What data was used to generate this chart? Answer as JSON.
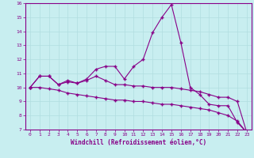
{
  "background_color": "#c8eef0",
  "line_color": "#880088",
  "xlabel": "Windchill (Refroidissement éolien,°C)",
  "xlim": [
    -0.5,
    23.5
  ],
  "ylim": [
    7,
    16
  ],
  "yticks": [
    7,
    8,
    9,
    10,
    11,
    12,
    13,
    14,
    15,
    16
  ],
  "xticks": [
    0,
    1,
    2,
    3,
    4,
    5,
    6,
    7,
    8,
    9,
    10,
    11,
    12,
    13,
    14,
    15,
    16,
    17,
    18,
    19,
    20,
    21,
    22,
    23
  ],
  "line1_x": [
    0,
    1,
    2,
    3,
    4,
    5,
    6,
    7,
    8,
    9,
    10,
    11,
    12,
    13,
    14,
    15,
    16,
    17,
    18,
    19,
    20,
    21,
    22,
    23
  ],
  "line1_y": [
    10.0,
    10.8,
    10.8,
    10.2,
    10.5,
    10.3,
    10.6,
    11.3,
    11.5,
    11.5,
    10.6,
    11.5,
    12.0,
    13.9,
    15.0,
    15.9,
    13.2,
    10.0,
    9.5,
    8.8,
    8.7,
    8.7,
    7.5,
    6.8
  ],
  "line2_x": [
    0,
    1,
    2,
    3,
    4,
    5,
    6,
    7,
    8,
    9,
    10,
    11,
    12,
    13,
    14,
    15,
    16,
    17,
    18,
    19,
    20,
    21,
    22,
    23
  ],
  "line2_y": [
    10.0,
    10.8,
    10.8,
    10.2,
    10.4,
    10.3,
    10.5,
    10.8,
    10.5,
    10.2,
    10.2,
    10.1,
    10.1,
    10.0,
    10.0,
    10.0,
    9.9,
    9.8,
    9.7,
    9.5,
    9.3,
    9.3,
    9.0,
    6.8
  ],
  "line3_x": [
    0,
    1,
    2,
    3,
    4,
    5,
    6,
    7,
    8,
    9,
    10,
    11,
    12,
    13,
    14,
    15,
    16,
    17,
    18,
    19,
    20,
    21,
    22,
    23
  ],
  "line3_y": [
    10.0,
    10.0,
    9.9,
    9.8,
    9.6,
    9.5,
    9.4,
    9.3,
    9.2,
    9.1,
    9.1,
    9.0,
    9.0,
    8.9,
    8.8,
    8.8,
    8.7,
    8.6,
    8.5,
    8.4,
    8.2,
    8.0,
    7.6,
    6.8
  ],
  "grid_color": "#b0dde0",
  "marker": "+",
  "markersize": 3,
  "linewidth": 0.8
}
